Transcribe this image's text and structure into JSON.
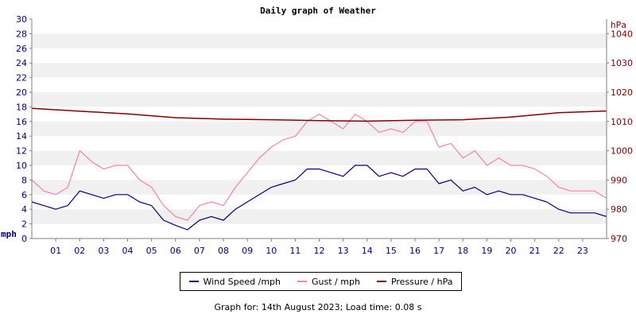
{
  "chart_data": {
    "type": "line",
    "title": "Daily graph of Weather",
    "left_axis": {
      "label": "mph",
      "min": 0,
      "max": 30,
      "ticks": [
        0,
        2,
        4,
        6,
        8,
        10,
        12,
        14,
        16,
        18,
        20,
        22,
        24,
        26,
        28,
        30
      ],
      "color": "#000080"
    },
    "right_axis": {
      "label": "hPa",
      "min": 970,
      "max": 1045,
      "ticks": [
        970,
        980,
        990,
        1000,
        1010,
        1020,
        1030,
        1040
      ],
      "color": "#800000"
    },
    "x_axis": {
      "min": 0,
      "max": 24,
      "tick_labels": [
        "01",
        "02",
        "03",
        "04",
        "05",
        "06",
        "07",
        "08",
        "09",
        "10",
        "11",
        "12",
        "13",
        "14",
        "15",
        "16",
        "17",
        "18",
        "19",
        "20",
        "21",
        "22",
        "23"
      ],
      "color": "#000080"
    },
    "grid": "alternating horizontal bands",
    "series": [
      {
        "name": "Wind Speed /mph",
        "color": "#000080",
        "axis": "left",
        "x": [
          0,
          0.5,
          1,
          1.5,
          2,
          2.5,
          3,
          3.5,
          4,
          4.5,
          5,
          5.5,
          6,
          6.5,
          7,
          7.5,
          8,
          8.5,
          9,
          9.5,
          10,
          10.5,
          11,
          11.5,
          12,
          12.5,
          13,
          13.5,
          14,
          14.5,
          15,
          15.5,
          16,
          16.5,
          17,
          17.5,
          18,
          18.5,
          19,
          19.5,
          20,
          20.5,
          21,
          21.5,
          22,
          22.5,
          23,
          23.5,
          24
        ],
        "values": [
          5,
          4.5,
          4,
          4.5,
          6.5,
          6,
          5.5,
          6,
          6,
          5,
          4.5,
          2.5,
          1.8,
          1.2,
          2.5,
          3,
          2.5,
          4,
          5,
          6,
          7,
          7.5,
          8,
          9.5,
          9.5,
          9,
          8.5,
          10,
          10,
          8.5,
          9,
          8.5,
          9.5,
          9.5,
          7.5,
          8,
          6.5,
          7,
          6,
          6.5,
          6,
          6,
          5.5,
          5,
          4,
          3.5,
          3.5,
          3.5,
          3
        ]
      },
      {
        "name": "Gust / mph",
        "color": "#ff7fa8",
        "axis": "left",
        "x": [
          0,
          0.5,
          1,
          1.5,
          2,
          2.5,
          3,
          3.5,
          4,
          4.5,
          5,
          5.5,
          6,
          6.5,
          7,
          7.5,
          8,
          8.5,
          9,
          9.5,
          10,
          10.5,
          11,
          11.5,
          12,
          12.5,
          13,
          13.5,
          14,
          14.5,
          15,
          15.5,
          16,
          16.5,
          17,
          17.5,
          18,
          18.5,
          19,
          19.5,
          20,
          20.5,
          21,
          21.5,
          22,
          22.5,
          23,
          23.5,
          24
        ],
        "values": [
          8,
          6.5,
          6,
          7,
          12,
          10.5,
          9.5,
          10,
          10,
          8,
          7,
          4.5,
          3,
          2.5,
          4.5,
          5,
          4.5,
          7,
          9,
          11,
          12.5,
          13.5,
          14,
          16,
          17,
          16,
          15,
          17,
          16,
          14.5,
          15,
          14.5,
          16,
          16,
          12.5,
          13,
          11,
          12,
          10,
          11,
          10,
          10,
          9.5,
          8.5,
          7,
          6.5,
          6.5,
          6.5,
          5.5
        ]
      },
      {
        "name": "Pressure / hPa",
        "color": "#800000",
        "axis": "right",
        "x": [
          0,
          2,
          4,
          6,
          8,
          10,
          12,
          14,
          16,
          18,
          20,
          22,
          24
        ],
        "values": [
          1014.5,
          1013.5,
          1012.6,
          1011.3,
          1010.8,
          1010.6,
          1010.3,
          1010.1,
          1010.4,
          1010.6,
          1011.5,
          1013,
          1013.6
        ]
      }
    ]
  },
  "footer_text": "Graph for: 14th August 2023; Load time: 0.08 s"
}
